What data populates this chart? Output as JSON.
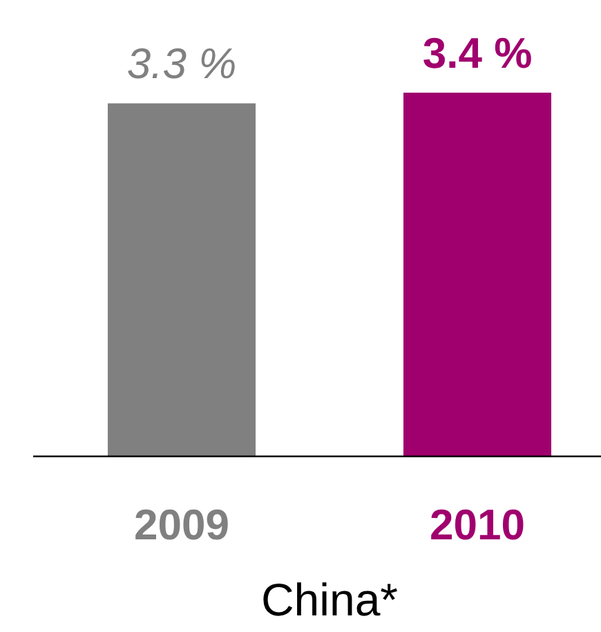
{
  "chart_data": {
    "type": "bar",
    "categories": [
      "2009",
      "2010"
    ],
    "values": [
      3.3,
      3.4
    ],
    "colors": [
      "#808080",
      "#a0006e"
    ],
    "value_labels": [
      "3.3 %",
      "3.4 %"
    ],
    "xlabel": "China*"
  }
}
